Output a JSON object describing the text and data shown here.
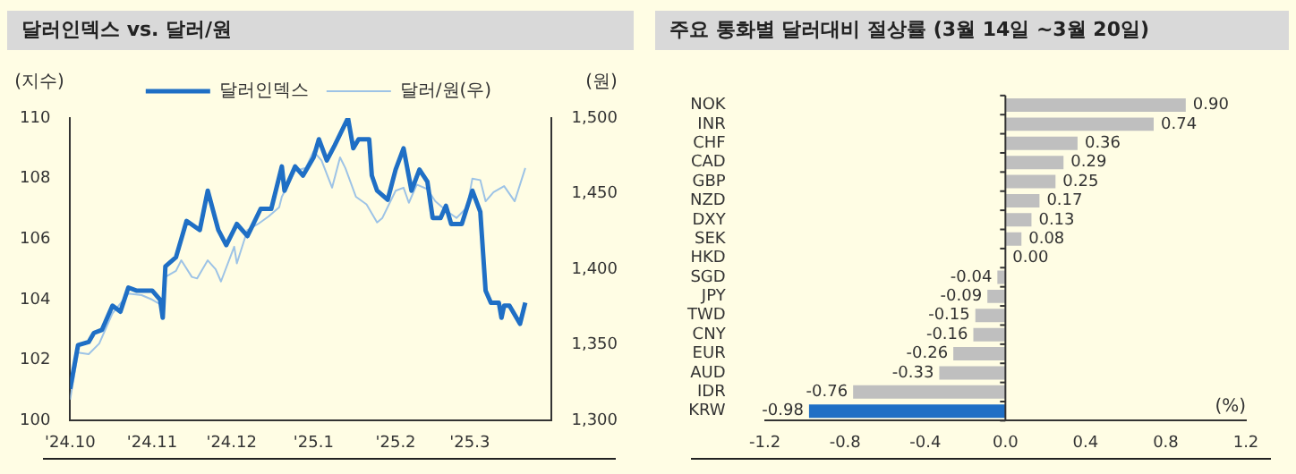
{
  "chart_data": [
    {
      "type": "line",
      "title": "달러인덱스 vs. 달러/원",
      "ylabel": "(지수)",
      "y2label": "(원)",
      "legend": "top",
      "xlim": [
        "2024-10-01",
        "2025-04-01"
      ],
      "xticks": [
        {
          "value": "2024-10-01",
          "label": "'24.10"
        },
        {
          "value": "2024-11-01",
          "label": "'24.11"
        },
        {
          "value": "2024-12-01",
          "label": "'24.12"
        },
        {
          "value": "2025-01-01",
          "label": "'25.1"
        },
        {
          "value": "2025-02-01",
          "label": "'25.2"
        },
        {
          "value": "2025-03-01",
          "label": "'25.3"
        }
      ],
      "ylim": [
        100,
        110
      ],
      "yticks": [
        100,
        102,
        104,
        106,
        108,
        110
      ],
      "y2lim": [
        1300,
        1500
      ],
      "y2ticks": [
        {
          "value": 1300,
          "label": "1,300"
        },
        {
          "value": 1350,
          "label": "1,350"
        },
        {
          "value": 1400,
          "label": "1,400"
        },
        {
          "value": 1450,
          "label": "1,450"
        },
        {
          "value": 1500,
          "label": "1,500"
        }
      ],
      "series": [
        {
          "name": "달러인덱스",
          "color": "#1f6fc5",
          "x": [
            "2024-10-01",
            "2024-10-04",
            "2024-10-08",
            "2024-10-10",
            "2024-10-13",
            "2024-10-17",
            "2024-10-20",
            "2024-10-23",
            "2024-10-26",
            "2024-11-01",
            "2024-11-04",
            "2024-11-05",
            "2024-11-06",
            "2024-11-10",
            "2024-11-14",
            "2024-11-19",
            "2024-11-22",
            "2024-11-26",
            "2024-11-29",
            "2024-12-03",
            "2024-12-07",
            "2024-12-12",
            "2024-12-16",
            "2024-12-20",
            "2024-12-21",
            "2024-12-25",
            "2024-12-28",
            "2025-01-01",
            "2025-01-03",
            "2025-01-06",
            "2025-01-09",
            "2025-01-14",
            "2025-01-16",
            "2025-01-18",
            "2025-01-22",
            "2025-01-23",
            "2025-01-25",
            "2025-01-29",
            "2025-02-01",
            "2025-02-04",
            "2025-02-07",
            "2025-02-10",
            "2025-02-13",
            "2025-02-15",
            "2025-02-18",
            "2025-02-20",
            "2025-02-22",
            "2025-02-26",
            "2025-03-02",
            "2025-03-05",
            "2025-03-07",
            "2025-03-09",
            "2025-03-12",
            "2025-03-13",
            "2025-03-14",
            "2025-03-16",
            "2025-03-20",
            "2025-03-22"
          ],
          "values": [
            101.05,
            102.5,
            102.6,
            102.9,
            103.0,
            103.8,
            103.6,
            104.4,
            104.3,
            104.3,
            104.0,
            103.4,
            105.1,
            105.4,
            106.6,
            106.3,
            107.6,
            106.3,
            105.8,
            106.5,
            106.1,
            107.0,
            107.0,
            108.4,
            107.6,
            108.4,
            108.1,
            108.7,
            109.3,
            108.6,
            109.1,
            110.0,
            109.0,
            109.3,
            109.3,
            108.1,
            107.6,
            107.3,
            108.3,
            109.0,
            107.6,
            108.3,
            107.9,
            106.7,
            106.7,
            107.1,
            106.5,
            106.5,
            107.6,
            106.9,
            104.3,
            103.9,
            103.9,
            103.4,
            103.8,
            103.8,
            103.2,
            103.9
          ]
        },
        {
          "name": "달러/원(우)",
          "color": "#9dc3e6",
          "axis": "y2",
          "x": [
            "2024-10-01",
            "2024-10-04",
            "2024-10-08",
            "2024-10-12",
            "2024-10-17",
            "2024-10-23",
            "2024-10-28",
            "2024-11-01",
            "2024-11-05",
            "2024-11-06",
            "2024-11-10",
            "2024-11-12",
            "2024-11-16",
            "2024-11-18",
            "2024-11-22",
            "2024-11-25",
            "2024-11-27",
            "2024-12-02",
            "2024-12-03",
            "2024-12-07",
            "2024-12-11",
            "2024-12-15",
            "2024-12-19",
            "2024-12-20",
            "2024-12-25",
            "2024-12-29",
            "2025-01-01",
            "2025-01-04",
            "2025-01-08",
            "2025-01-11",
            "2025-01-13",
            "2025-01-17",
            "2025-01-21",
            "2025-01-25",
            "2025-01-27",
            "2025-02-01",
            "2025-02-04",
            "2025-02-06",
            "2025-02-09",
            "2025-02-13",
            "2025-02-16",
            "2025-02-20",
            "2025-02-24",
            "2025-02-28",
            "2025-03-02",
            "2025-03-05",
            "2025-03-07",
            "2025-03-10",
            "2025-03-14",
            "2025-03-18",
            "2025-03-22"
          ],
          "values": [
            1314,
            1345,
            1344,
            1351,
            1371,
            1384,
            1383,
            1380,
            1376,
            1395,
            1399,
            1406,
            1395,
            1394,
            1406,
            1400,
            1392,
            1415,
            1404,
            1426,
            1430,
            1435,
            1441,
            1448,
            1465,
            1467,
            1478,
            1472,
            1454,
            1474,
            1467,
            1448,
            1443,
            1431,
            1434,
            1452,
            1454,
            1444,
            1456,
            1453,
            1445,
            1439,
            1434,
            1441,
            1460,
            1459,
            1445,
            1451,
            1455,
            1445,
            1467
          ]
        }
      ]
    },
    {
      "type": "bar",
      "orientation": "horizontal",
      "title": "주요 통화별 달러대비 절상률 (3월 14일 ~3월 20일)",
      "categories": [
        "NOK",
        "INR",
        "CHF",
        "CAD",
        "GBP",
        "NZD",
        "DXY",
        "SEK",
        "HKD",
        "SGD",
        "JPY",
        "TWD",
        "CNY",
        "EUR",
        "AUD",
        "IDR",
        "KRW"
      ],
      "values": [
        0.9,
        0.74,
        0.36,
        0.29,
        0.25,
        0.17,
        0.13,
        0.08,
        0.0,
        -0.04,
        -0.09,
        -0.15,
        -0.16,
        -0.26,
        -0.33,
        -0.76,
        -0.98
      ],
      "value_labels": [
        "0.90",
        "0.74",
        "0.36",
        "0.29",
        "0.25",
        "0.17",
        "0.13",
        "0.08",
        "0.00",
        "-0.04",
        "-0.09",
        "-0.15",
        "-0.16",
        "-0.26",
        "-0.33",
        "-0.76",
        "-0.98"
      ],
      "colors": [
        "#bfbfbf",
        "#bfbfbf",
        "#bfbfbf",
        "#bfbfbf",
        "#bfbfbf",
        "#bfbfbf",
        "#bfbfbf",
        "#bfbfbf",
        "#bfbfbf",
        "#bfbfbf",
        "#bfbfbf",
        "#bfbfbf",
        "#bfbfbf",
        "#bfbfbf",
        "#bfbfbf",
        "#bfbfbf",
        "#1f6fc5"
      ],
      "xlim": [
        -1.2,
        1.2
      ],
      "xticks": [
        -1.2,
        -0.8,
        -0.4,
        {
          "value": 0,
          "label": "0.0"
        },
        0.4,
        0.8,
        1.2
      ],
      "annotations": [
        "(%)"
      ]
    }
  ]
}
